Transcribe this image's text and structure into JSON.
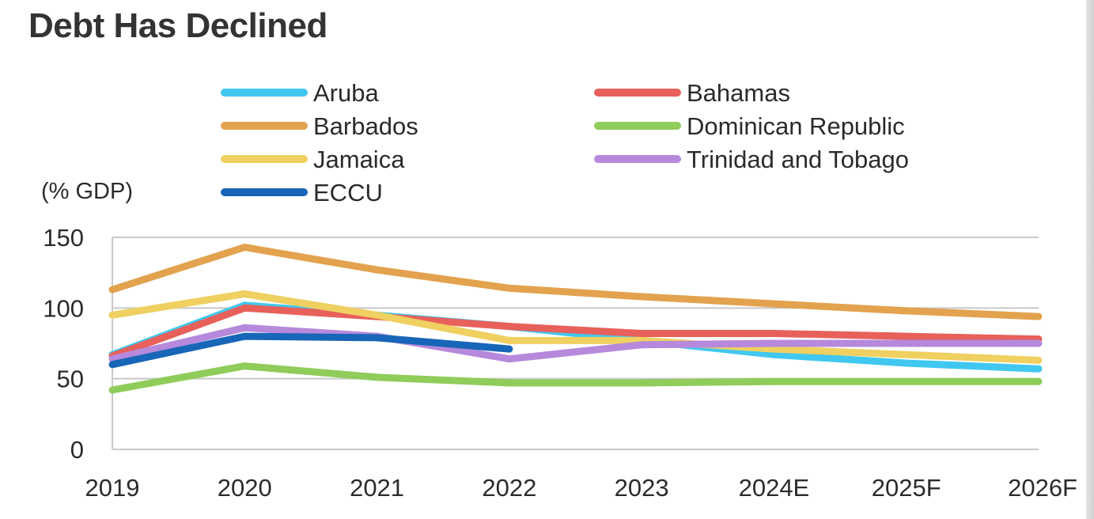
{
  "title": "Debt Has Declined",
  "chart_data": {
    "type": "line",
    "title": "Debt Has Declined",
    "ylabel": "(% GDP)",
    "xlabel": "",
    "categories": [
      "2019",
      "2020",
      "2021",
      "2022",
      "2023",
      "2024E",
      "2025F",
      "2026F"
    ],
    "ylim": [
      0,
      150
    ],
    "yticks": [
      0,
      50,
      100,
      150
    ],
    "grid": true,
    "legend_position": "top",
    "series": [
      {
        "name": "Aruba",
        "color": "#40c8f0",
        "values": [
          67,
          102,
          95,
          87,
          77,
          67,
          61,
          57
        ]
      },
      {
        "name": "Bahamas",
        "color": "#e8605a",
        "values": [
          66,
          100,
          94,
          87,
          82,
          82,
          80,
          78
        ]
      },
      {
        "name": "Barbados",
        "color": "#e3a24e",
        "values": [
          113,
          143,
          127,
          114,
          108,
          103,
          98,
          94
        ]
      },
      {
        "name": "Dominican Republic",
        "color": "#8fcc5a",
        "values": [
          42,
          59,
          51,
          47,
          47,
          48,
          48,
          48
        ]
      },
      {
        "name": "Jamaica",
        "color": "#efd060",
        "values": [
          95,
          110,
          95,
          77,
          77,
          71,
          67,
          63
        ]
      },
      {
        "name": "Trinidad and Tobago",
        "color": "#b689dc",
        "values": [
          64,
          86,
          80,
          64,
          74,
          75,
          75,
          75
        ]
      },
      {
        "name": "ECCU",
        "color": "#1766b8",
        "values": [
          60,
          80,
          79,
          71,
          null,
          null,
          null,
          null
        ]
      }
    ]
  }
}
